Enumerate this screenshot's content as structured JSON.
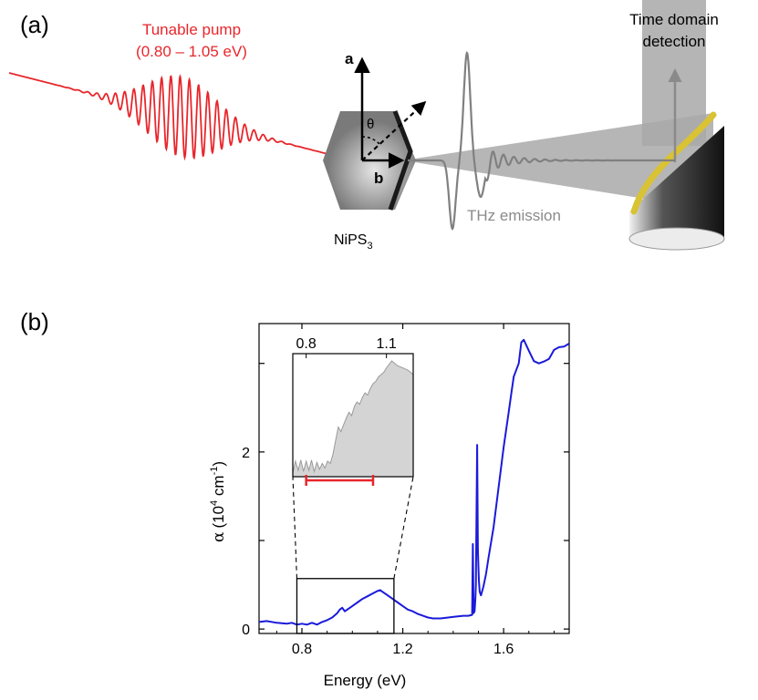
{
  "panel_a": {
    "label": "(a)",
    "pump_title": "Tunable pump",
    "pump_range": "(0.80 – 1.05 eV)",
    "axis_a": "a",
    "axis_b": "b",
    "theta": "θ",
    "sample_name": "NiPS",
    "sample_sub": "3",
    "thz_label": "THz emission",
    "detection_line1": "Time domain",
    "detection_line2": "detection",
    "colors": {
      "pump": "#e8262b",
      "thz": "#808080",
      "mirror_rim": "#d9c234"
    }
  },
  "panel_b": {
    "label": "(b)",
    "chart_data": {
      "type": "line",
      "xlabel": "Energy (eV)",
      "ylabel_greek": "α",
      "ylabel_unit": "(10",
      "ylabel_exp": "4",
      "ylabel_unit2": " cm",
      "ylabel_exp2": "-1",
      "ylabel_close": ")",
      "xlim": [
        0.63,
        1.86
      ],
      "ylim": [
        -0.05,
        3.45
      ],
      "xticks": [
        0.8,
        1.2,
        1.6
      ],
      "xtick_labels": [
        "0.8",
        "1.2",
        "1.6"
      ],
      "yticks": [
        0,
        1,
        2,
        3
      ],
      "ytick_labels": [
        "0",
        "",
        "2",
        ""
      ],
      "line_color": "#1a1adb",
      "series": [
        {
          "x": [
            0.63,
            0.66,
            0.7,
            0.74,
            0.76,
            0.78,
            0.8,
            0.82,
            0.84,
            0.86,
            0.88,
            0.9,
            0.92,
            0.94,
            0.95,
            0.96,
            0.97,
            0.98,
            1.0,
            1.02,
            1.04,
            1.06,
            1.08,
            1.1,
            1.11,
            1.12,
            1.14,
            1.16,
            1.18,
            1.2,
            1.22,
            1.24,
            1.26,
            1.28,
            1.3,
            1.32,
            1.35,
            1.38,
            1.41,
            1.44,
            1.46,
            1.475,
            1.478,
            1.481,
            1.485,
            1.488,
            1.49,
            1.495,
            1.498,
            1.5,
            1.502,
            1.505,
            1.51,
            1.52,
            1.53,
            1.54,
            1.56,
            1.58,
            1.6,
            1.62,
            1.63,
            1.64,
            1.66,
            1.67,
            1.68,
            1.7,
            1.72,
            1.74,
            1.76,
            1.78,
            1.8,
            1.82,
            1.84,
            1.86
          ],
          "y": [
            0.08,
            0.09,
            0.07,
            0.06,
            0.07,
            0.05,
            0.06,
            0.05,
            0.07,
            0.05,
            0.08,
            0.1,
            0.13,
            0.18,
            0.22,
            0.24,
            0.2,
            0.22,
            0.26,
            0.3,
            0.34,
            0.37,
            0.4,
            0.43,
            0.44,
            0.42,
            0.38,
            0.34,
            0.3,
            0.26,
            0.22,
            0.2,
            0.17,
            0.15,
            0.13,
            0.12,
            0.12,
            0.13,
            0.14,
            0.15,
            0.15,
            0.16,
            0.96,
            0.18,
            0.2,
            0.35,
            0.5,
            2.08,
            0.9,
            0.7,
            0.55,
            0.42,
            0.38,
            0.48,
            0.62,
            0.8,
            1.15,
            1.6,
            2.05,
            2.45,
            2.65,
            2.85,
            3.0,
            3.18,
            3.22,
            3.15,
            3.08,
            3.05,
            3.02,
            3.0,
            3.1,
            3.18,
            3.24,
            3.28
          ]
        }
      ],
      "inset": {
        "xticks_labels": [
          "0.8",
          "1.1"
        ],
        "xticks": [
          0.8,
          1.1
        ],
        "xlim": [
          0.75,
          1.2
        ],
        "fill_color": "#d4d4d4",
        "range_color": "#e8262b",
        "range": [
          0.8,
          1.05
        ],
        "x": [
          0.75,
          0.76,
          0.77,
          0.78,
          0.79,
          0.8,
          0.81,
          0.82,
          0.83,
          0.84,
          0.85,
          0.86,
          0.87,
          0.88,
          0.89,
          0.9,
          0.91,
          0.92,
          0.93,
          0.94,
          0.95,
          0.96,
          0.97,
          0.98,
          0.99,
          1.0,
          1.01,
          1.02,
          1.03,
          1.04,
          1.05,
          1.06,
          1.07,
          1.08,
          1.09,
          1.1,
          1.11,
          1.12,
          1.13,
          1.14,
          1.15,
          1.16,
          1.17,
          1.18,
          1.19,
          1.2
        ],
        "y": [
          0.02,
          0.12,
          0.04,
          0.13,
          0.03,
          0.12,
          0.04,
          0.13,
          0.03,
          0.11,
          0.05,
          0.1,
          0.06,
          0.12,
          0.1,
          0.18,
          0.3,
          0.42,
          0.38,
          0.44,
          0.5,
          0.55,
          0.52,
          0.6,
          0.64,
          0.62,
          0.68,
          0.72,
          0.7,
          0.76,
          0.8,
          0.82,
          0.86,
          0.88,
          0.9,
          0.94,
          0.97,
          1.0,
          0.98,
          0.96,
          0.95,
          0.94,
          0.93,
          0.92,
          0.9,
          0.88
        ]
      }
    }
  }
}
